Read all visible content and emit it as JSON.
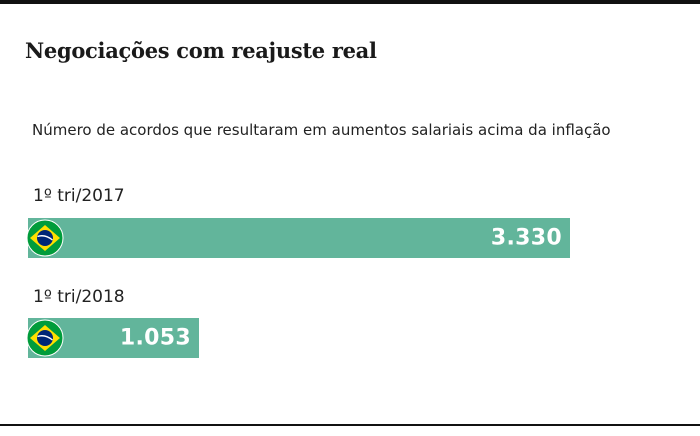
{
  "header": {
    "title": "Negociações com reajuste real",
    "subtitle": "Número de acordos que resultaram em aumentos salariais acima da inflação"
  },
  "colors": {
    "bar": "#62b59b",
    "value_text": "#ffffff",
    "rule": "#111111"
  },
  "chart_data": {
    "type": "bar",
    "orientation": "horizontal",
    "title": "Negociações com reajuste real",
    "subtitle": "Número de acordos que resultaram em aumentos salariais acima da inflação",
    "categories": [
      "1º tri/2017",
      "1º tri/2018"
    ],
    "values": [
      3330,
      1053
    ],
    "value_labels": [
      "3.330",
      "1.053"
    ],
    "xlim": [
      0,
      3330
    ],
    "grid": false,
    "legend": "none",
    "icons": [
      "brazil-flag-icon",
      "brazil-flag-icon"
    ]
  }
}
